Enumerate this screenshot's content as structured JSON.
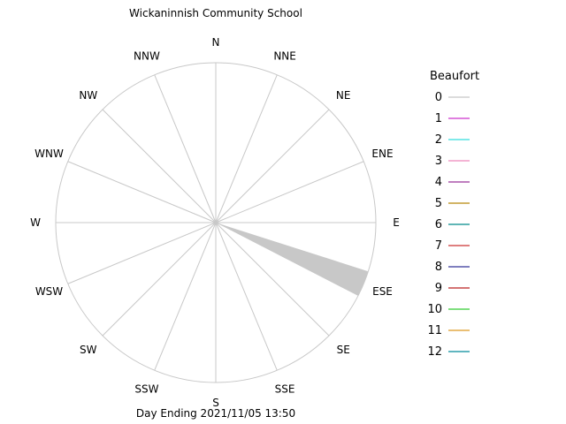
{
  "chart_data": {
    "type": "wind-rose",
    "title": "Wickaninnish Community School",
    "footer": "Day Ending 2021/11/05 13:50",
    "directions": [
      "N",
      "NNE",
      "NE",
      "ENE",
      "E",
      "ESE",
      "SE",
      "SSE",
      "S",
      "SSW",
      "SW",
      "WSW",
      "W",
      "WNW",
      "NW",
      "NNW"
    ],
    "grid": true,
    "legend": {
      "title": "Beaufort",
      "placement": "right",
      "entries": [
        {
          "label": "0",
          "color": "#c8c8c8"
        },
        {
          "label": "1",
          "color": "#cc33cc"
        },
        {
          "label": "2",
          "color": "#33dddd"
        },
        {
          "label": "3",
          "color": "#ee88bb"
        },
        {
          "label": "4",
          "color": "#993399"
        },
        {
          "label": "5",
          "color": "#b8860b"
        },
        {
          "label": "6",
          "color": "#008b8b"
        },
        {
          "label": "7",
          "color": "#cc3333"
        },
        {
          "label": "8",
          "color": "#333399"
        },
        {
          "label": "9",
          "color": "#bb2222"
        },
        {
          "label": "10",
          "color": "#33cc33"
        },
        {
          "label": "11",
          "color": "#dd9922"
        },
        {
          "label": "12",
          "color": "#008b9b"
        }
      ]
    },
    "series": [
      {
        "beaufort": "0",
        "direction": "ESE",
        "frequency_fraction": 1.0
      }
    ]
  }
}
